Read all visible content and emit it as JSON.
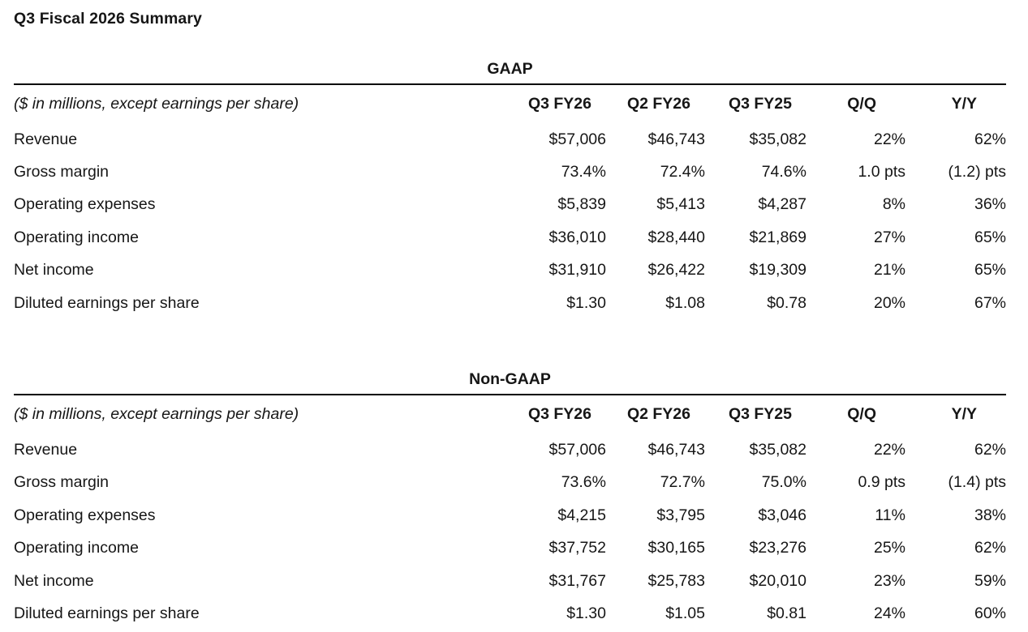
{
  "page": {
    "title": "Q3 Fiscal 2026 Summary"
  },
  "colors": {
    "text": "#161616",
    "rule": "#000000",
    "background": "#ffffff"
  },
  "tables": [
    {
      "section_title": "GAAP",
      "unit_note": "($ in millions, except earnings per share)",
      "columns": [
        "Q3 FY26",
        "Q2 FY26",
        "Q3 FY25",
        "Q/Q",
        "Y/Y"
      ],
      "rows": [
        {
          "label": "Revenue",
          "values": [
            "$57,006",
            "$46,743",
            "$35,082",
            "22%",
            "62%"
          ]
        },
        {
          "label": "Gross margin",
          "values": [
            "73.4%",
            "72.4%",
            "74.6%",
            "1.0 pts",
            "(1.2) pts"
          ]
        },
        {
          "label": "Operating expenses",
          "values": [
            "$5,839",
            "$5,413",
            "$4,287",
            "8%",
            "36%"
          ]
        },
        {
          "label": "Operating income",
          "values": [
            "$36,010",
            "$28,440",
            "$21,869",
            "27%",
            "65%"
          ]
        },
        {
          "label": "Net income",
          "values": [
            "$31,910",
            "$26,422",
            "$19,309",
            "21%",
            "65%"
          ]
        },
        {
          "label": "Diluted earnings per share",
          "values": [
            "$1.30",
            "$1.08",
            "$0.78",
            "20%",
            "67%"
          ]
        }
      ]
    },
    {
      "section_title": "Non-GAAP",
      "unit_note": "($ in millions, except earnings per share)",
      "columns": [
        "Q3 FY26",
        "Q2 FY26",
        "Q3 FY25",
        "Q/Q",
        "Y/Y"
      ],
      "rows": [
        {
          "label": "Revenue",
          "values": [
            "$57,006",
            "$46,743",
            "$35,082",
            "22%",
            "62%"
          ]
        },
        {
          "label": "Gross margin",
          "values": [
            "73.6%",
            "72.7%",
            "75.0%",
            "0.9 pts",
            "(1.4) pts"
          ]
        },
        {
          "label": "Operating expenses",
          "values": [
            "$4,215",
            "$3,795",
            "$3,046",
            "11%",
            "38%"
          ]
        },
        {
          "label": "Operating income",
          "values": [
            "$37,752",
            "$30,165",
            "$23,276",
            "25%",
            "62%"
          ]
        },
        {
          "label": "Net income",
          "values": [
            "$31,767",
            "$25,783",
            "$20,010",
            "23%",
            "59%"
          ]
        },
        {
          "label": "Diluted earnings per share",
          "values": [
            "$1.30",
            "$1.05",
            "$0.81",
            "24%",
            "60%"
          ]
        }
      ]
    }
  ]
}
